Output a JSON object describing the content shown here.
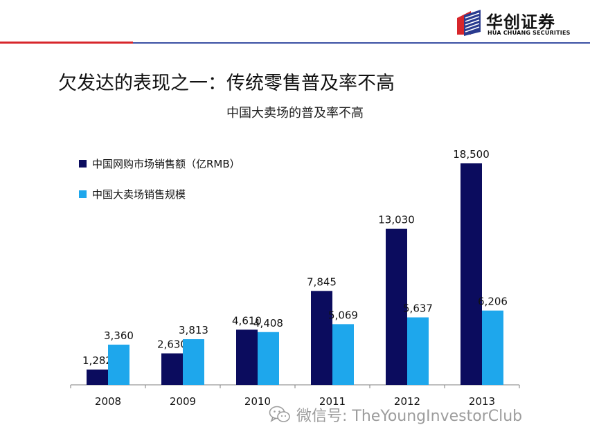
{
  "header": {
    "logo_cn": "华创证券",
    "logo_en": "HUA CHUANG SECURITIES",
    "colors": {
      "red_rule": "#d7262b",
      "blue_rule": "#3a4fa3",
      "logo_red": "#d7262b",
      "logo_blue": "#2a3b8f"
    }
  },
  "slide_title": "欠发达的表现之一：传统零售普及率不高",
  "chart_data": {
    "type": "bar",
    "title": "中国大卖场的普及率不高",
    "categories": [
      "2008",
      "2009",
      "2010",
      "2011",
      "2012",
      "2013"
    ],
    "series": [
      {
        "name": "中国网购市场销售额（亿RMB）",
        "color": "#0b0c5e",
        "values": [
          1282,
          2630,
          4610,
          7845,
          13030,
          18500
        ],
        "labels": [
          "1,282",
          "2,630",
          "4,610",
          "7,845",
          "13,030",
          "18,500"
        ]
      },
      {
        "name": "中国大卖场销售规模",
        "color": "#1ea7ec",
        "values": [
          3360,
          3813,
          4408,
          5069,
          5637,
          6206
        ],
        "labels": [
          "3,360",
          "3,813",
          "4,408",
          "5,069",
          "5,637",
          "6,206"
        ]
      }
    ],
    "xlabel": "",
    "ylabel": "",
    "ylim": [
      0,
      18500
    ],
    "grid": false,
    "legend_position": "top-left"
  },
  "watermark": {
    "text": "微信号: TheYoungInvestorClub",
    "icon": "wechat-icon"
  }
}
